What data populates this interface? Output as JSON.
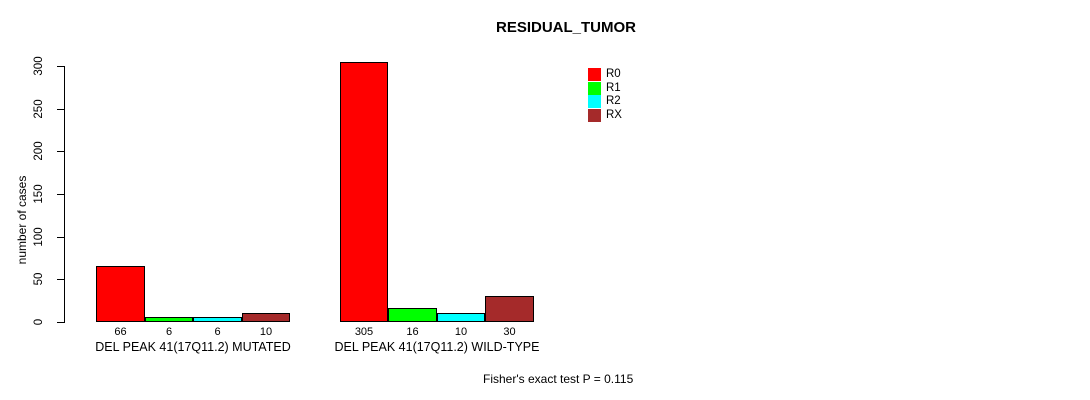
{
  "chart_data": {
    "type": "bar",
    "title": "RESIDUAL_TUMOR",
    "ylabel": "number of cases",
    "xlabel": "",
    "categories": [
      "DEL PEAK 41(17Q11.2) MUTATED",
      "DEL PEAK 41(17Q11.2) WILD-TYPE"
    ],
    "series": [
      {
        "name": "R0",
        "color": "#FF0000",
        "values": [
          66,
          305
        ]
      },
      {
        "name": "R1",
        "color": "#00FF00",
        "values": [
          6,
          16
        ]
      },
      {
        "name": "R2",
        "color": "#00FFFF",
        "values": [
          6,
          10
        ]
      },
      {
        "name": "RX",
        "color": "#A52A2A",
        "values": [
          10,
          30
        ]
      }
    ],
    "bar_value_labels": [
      [
        66,
        6,
        6,
        10
      ],
      [
        305,
        16,
        10,
        30
      ]
    ],
    "yticks": [
      0,
      50,
      100,
      150,
      200,
      250,
      300
    ],
    "ylim": [
      0,
      310
    ],
    "grid": false,
    "legend_position": "top-right",
    "legend_entries": [
      "R0",
      "R1",
      "R2",
      "RX"
    ],
    "annotation": "Fisher's exact test P = 0.115"
  },
  "colors": {
    "background": "#FFFFFF",
    "axis": "#000000",
    "bar_border": "#000000"
  }
}
